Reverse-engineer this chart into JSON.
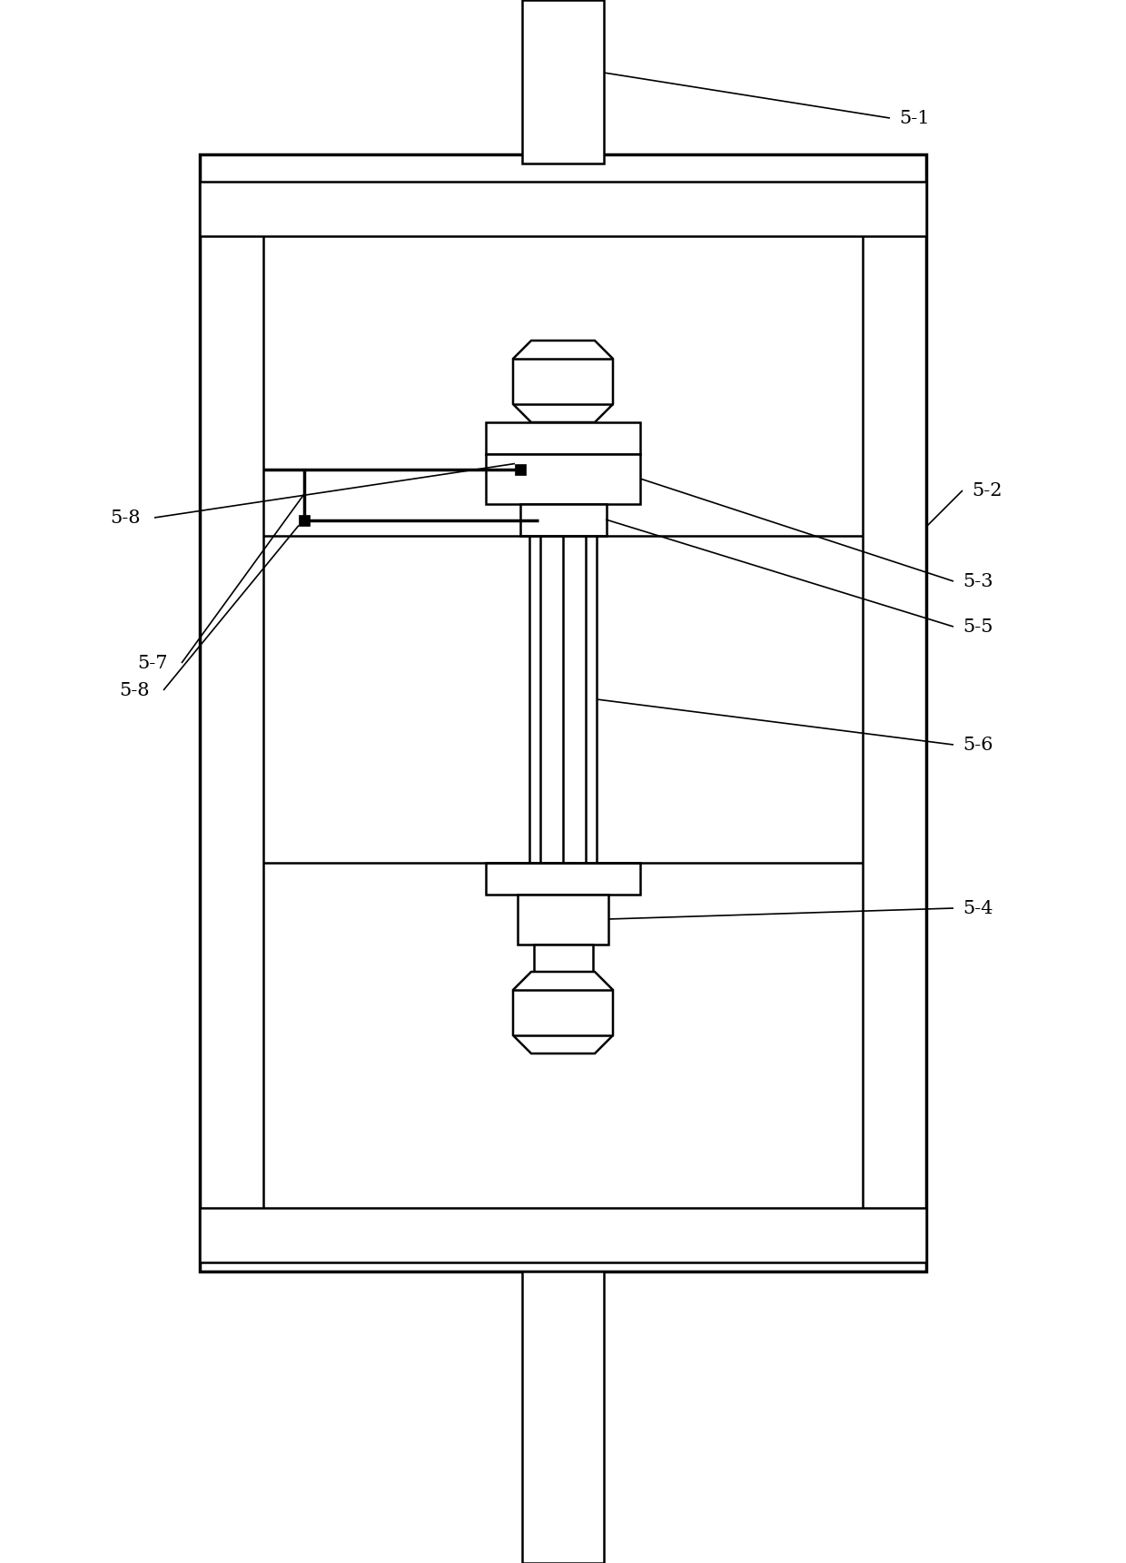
{
  "bg_color": "#ffffff",
  "line_color": "#000000",
  "lw": 1.8,
  "tlw": 2.5,
  "fig_width": 12.4,
  "fig_height": 17.21
}
